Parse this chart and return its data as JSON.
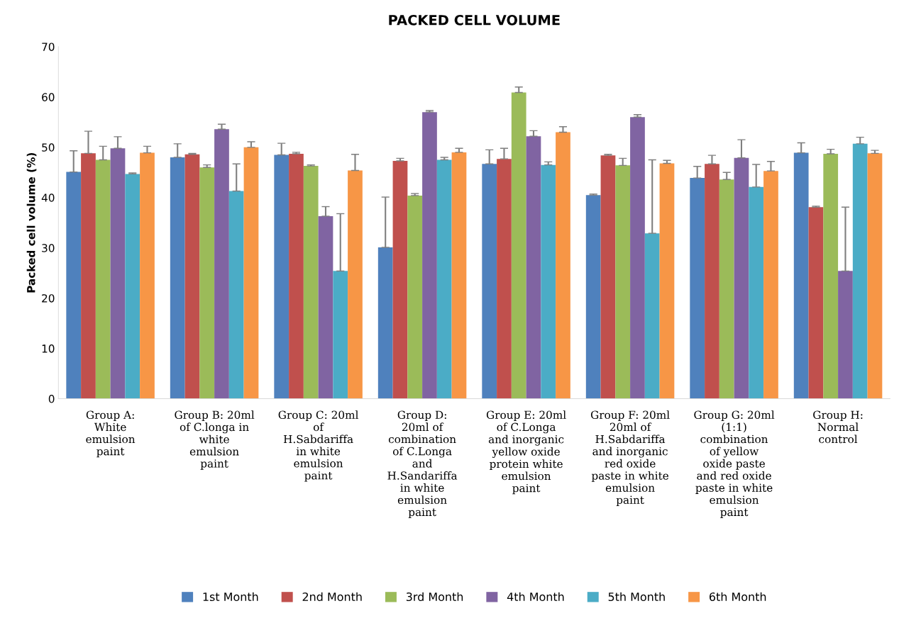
{
  "chart_data": {
    "type": "bar",
    "title": "PACKED CELL VOLUME",
    "ylabel": "Packed cell volume (%)",
    "categories": [
      "Group A:\nWhite\nemulsion\npaint",
      "Group B: 20ml\nof C.longa in\nwhite\nemulsion\npaint",
      "Group C: 20ml\nof\nH.Sabdariffa\nin white\nemulsion\npaint",
      "Group D:\n20ml of\ncombination\nof C.Longa\nand\nH.Sandariffa\nin white\nemulsion\npaint",
      "Group E: 20ml\nof C.Longa\nand inorganic\nyellow oxide\nprotein white\nemulsion\npaint",
      "Group F: 20ml\n20ml of\nH.Sabdariffa\nand inorganic\nred oxide\npaste in white\nemulsion\npaint",
      "Group G: 20ml\n(1:1)\ncombination\nof yellow\noxide paste\nand red oxide\npaste in white\nemulsion\npaint",
      "Group H:\nNormal\ncontrol"
    ],
    "series": [
      {
        "name": "1st Month",
        "color": "#4f81bd",
        "values": [
          45.1,
          48.0,
          48.5,
          30.1,
          46.7,
          40.5,
          43.9,
          48.9
        ],
        "errors": [
          [
            45.1,
            49.3
          ],
          [
            48.0,
            50.7
          ],
          [
            48.5,
            50.8
          ],
          [
            30.1,
            40.1
          ],
          [
            46.7,
            49.5
          ],
          [
            40.5,
            40.7
          ],
          [
            43.9,
            46.2
          ],
          [
            48.9,
            50.9
          ]
        ]
      },
      {
        "name": "2nd Month",
        "color": "#c0504d",
        "values": [
          48.8,
          48.6,
          48.7,
          47.3,
          47.7,
          48.4,
          46.7,
          38.1
        ],
        "errors": [
          [
            48.8,
            53.2
          ],
          [
            48.6,
            48.8
          ],
          [
            48.7,
            49.0
          ],
          [
            47.3,
            47.8
          ],
          [
            47.7,
            49.8
          ],
          [
            48.4,
            48.6
          ],
          [
            46.7,
            48.4
          ],
          [
            38.1,
            38.3
          ]
        ]
      },
      {
        "name": "3rd Month",
        "color": "#9bbb59",
        "values": [
          47.5,
          46.0,
          46.3,
          40.4,
          60.9,
          46.4,
          43.6,
          48.7
        ],
        "errors": [
          [
            47.5,
            50.2
          ],
          [
            46.0,
            46.5
          ],
          [
            46.3,
            46.5
          ],
          [
            40.4,
            40.8
          ],
          [
            60.9,
            62.0
          ],
          [
            46.4,
            47.8
          ],
          [
            43.6,
            45.0
          ],
          [
            48.7,
            49.6
          ]
        ]
      },
      {
        "name": "4th Month",
        "color": "#8064a2",
        "values": [
          49.8,
          53.6,
          36.3,
          57.0,
          52.2,
          56.0,
          47.9,
          25.4
        ],
        "errors": [
          [
            49.8,
            52.1
          ],
          [
            53.6,
            54.6
          ],
          [
            36.3,
            38.2
          ],
          [
            57.0,
            57.3
          ],
          [
            52.2,
            53.3
          ],
          [
            56.0,
            56.5
          ],
          [
            47.9,
            51.5
          ],
          [
            25.4,
            38.1
          ]
        ]
      },
      {
        "name": "5th Month",
        "color": "#4bacc6",
        "values": [
          44.7,
          41.3,
          25.4,
          47.5,
          46.5,
          32.9,
          42.1,
          50.7
        ],
        "errors": [
          [
            44.7,
            44.9
          ],
          [
            41.3,
            46.7
          ],
          [
            25.4,
            36.8
          ],
          [
            47.5,
            48.0
          ],
          [
            46.5,
            47.1
          ],
          [
            32.9,
            47.5
          ],
          [
            42.1,
            46.6
          ],
          [
            50.7,
            52.0
          ]
        ]
      },
      {
        "name": "6th Month",
        "color": "#f79646",
        "values": [
          48.9,
          50.0,
          45.4,
          49.0,
          53.0,
          46.8,
          45.3,
          48.8
        ],
        "errors": [
          [
            48.9,
            50.2
          ],
          [
            50.0,
            51.1
          ],
          [
            45.4,
            48.6
          ],
          [
            49.0,
            49.8
          ],
          [
            53.0,
            54.1
          ],
          [
            46.8,
            47.4
          ],
          [
            45.3,
            47.2
          ],
          [
            48.8,
            49.4
          ]
        ]
      }
    ],
    "ylim": [
      0,
      70
    ],
    "yticks": [
      0,
      10,
      20,
      30,
      40,
      50,
      60,
      70
    ],
    "grid": false,
    "legend": "bottom"
  }
}
